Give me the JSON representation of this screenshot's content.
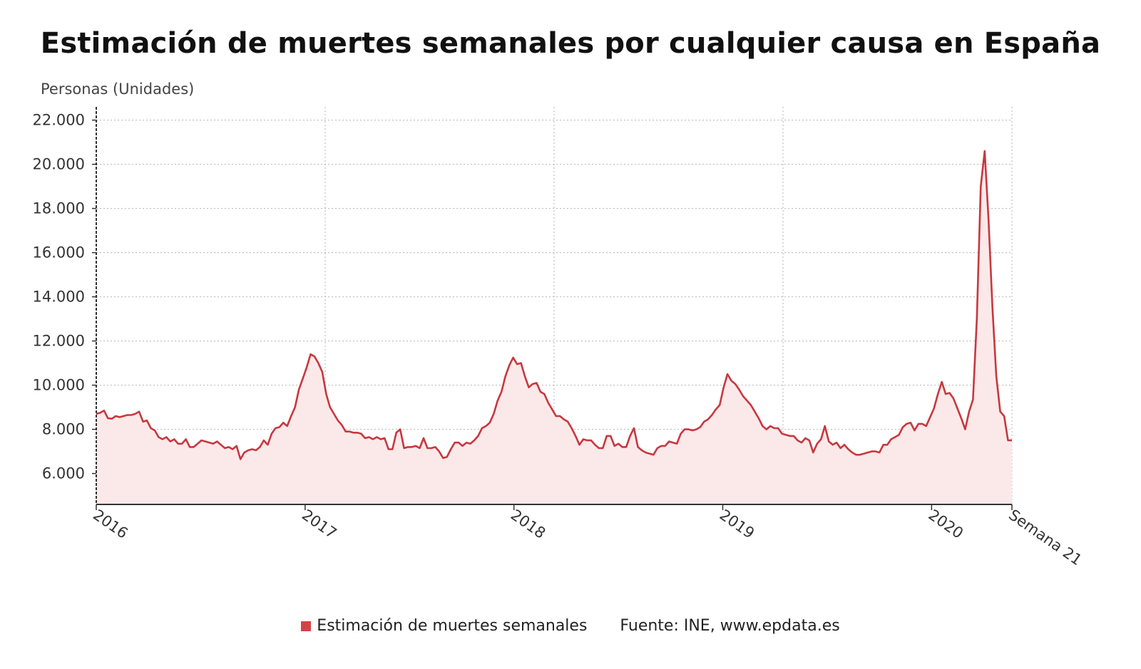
{
  "chart_data": {
    "type": "area",
    "title": "Estimación de muertes semanales por cualquier causa en España",
    "ylabel": "Personas (Unidades)",
    "xlabel": "",
    "ylim": [
      4600,
      22600
    ],
    "yticks": [
      6000,
      8000,
      10000,
      12000,
      14000,
      16000,
      18000,
      20000,
      22000
    ],
    "ytick_labels": [
      "6.000",
      "8.000",
      "10.000",
      "12.000",
      "14.000",
      "16.000",
      "18.000",
      "20.000",
      "22.000"
    ],
    "xtick_labels": [
      "2016",
      "2017",
      "2018",
      "2019",
      "2020",
      "Semana 21"
    ],
    "xtick_weeks": [
      0,
      52,
      104,
      156,
      208,
      228
    ],
    "xrange_weeks": [
      0,
      228
    ],
    "grid": true,
    "series": [
      {
        "name": "Estimación de muertes semanales",
        "color": "#c8373f",
        "values": [
          8700,
          8750,
          8850,
          8500,
          8480,
          8600,
          8550,
          8600,
          8650,
          8650,
          8700,
          8800,
          8350,
          8400,
          8050,
          7950,
          7650,
          7550,
          7650,
          7450,
          7550,
          7350,
          7350,
          7550,
          7200,
          7200,
          7350,
          7500,
          7450,
          7400,
          7350,
          7450,
          7300,
          7150,
          7200,
          7100,
          7250,
          6650,
          6950,
          7050,
          7100,
          7050,
          7200,
          7500,
          7300,
          7800,
          8050,
          8100,
          8300,
          8150,
          8600,
          9000,
          9800,
          10300,
          10800,
          11400,
          11300,
          11000,
          10600,
          9600,
          9000,
          8700,
          8400,
          8200,
          7900,
          7900,
          7850,
          7850,
          7800,
          7600,
          7650,
          7550,
          7650,
          7550,
          7600,
          7100,
          7100,
          7850,
          8000,
          7150,
          7200,
          7200,
          7250,
          7150,
          7600,
          7150,
          7150,
          7200,
          7000,
          6700,
          6750,
          7100,
          7400,
          7400,
          7250,
          7400,
          7350,
          7500,
          7700,
          8050,
          8150,
          8300,
          8700,
          9300,
          9700,
          10400,
          10900,
          11250,
          10950,
          11000,
          10400,
          9900,
          10050,
          10100,
          9700,
          9600,
          9200,
          8900,
          8600,
          8600,
          8450,
          8350,
          8050,
          7700,
          7300,
          7550,
          7500,
          7500,
          7300,
          7150,
          7150,
          7700,
          7700,
          7250,
          7350,
          7200,
          7200,
          7700,
          8050,
          7200,
          7050,
          6950,
          6900,
          6850,
          7150,
          7250,
          7250,
          7450,
          7400,
          7350,
          7800,
          8000,
          8000,
          7950,
          8000,
          8100,
          8350,
          8450,
          8650,
          8900,
          9100,
          9900,
          10500,
          10200,
          10050,
          9800,
          9500,
          9300,
          9100,
          8800,
          8500,
          8150,
          8000,
          8150,
          8050,
          8050,
          7800,
          7750,
          7700,
          7700,
          7500,
          7400,
          7600,
          7500,
          6950,
          7350,
          7550,
          8150,
          7450,
          7300,
          7400,
          7150,
          7300,
          7100,
          6950,
          6850,
          6850,
          6900,
          6950,
          7000,
          7000,
          6950,
          7300,
          7300,
          7550,
          7650,
          7750,
          8100,
          8250,
          8300,
          7950,
          8250,
          8250,
          8150,
          8550,
          8950,
          9600,
          10150,
          9600,
          9650,
          9400,
          8950,
          8500,
          8000,
          8800,
          9350,
          13000,
          19000,
          20600,
          17500,
          13500,
          10400,
          8800,
          8600,
          7500,
          7500
        ]
      }
    ]
  },
  "legend": {
    "series_label": "Estimación de muertes semanales",
    "source_text": "Fuente: INE, www.epdata.es"
  },
  "colors": {
    "line": "#c8373f",
    "fill": "#fbe9e9",
    "swatch": "#d44447",
    "grid": "#b5b5b5",
    "axis": "#333333"
  }
}
